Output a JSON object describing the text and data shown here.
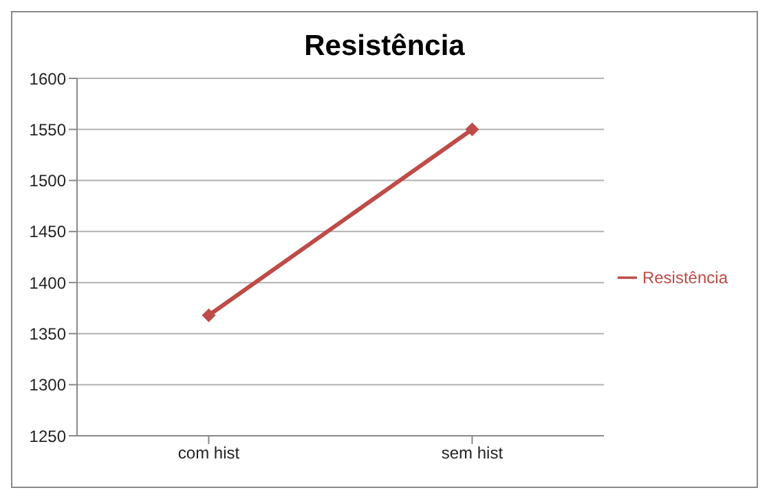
{
  "chart_data": {
    "type": "line",
    "title": "Resistência",
    "categories": [
      "com hist",
      "sem hist"
    ],
    "series": [
      {
        "name": "Resistência",
        "color": "#be4b48",
        "values": [
          1368,
          1550
        ]
      }
    ],
    "ylim": [
      1250,
      1600
    ],
    "yticks": [
      1250,
      1300,
      1350,
      1400,
      1450,
      1500,
      1550,
      1600
    ],
    "grid": "y",
    "legend": "right",
    "marker": "diamond"
  }
}
